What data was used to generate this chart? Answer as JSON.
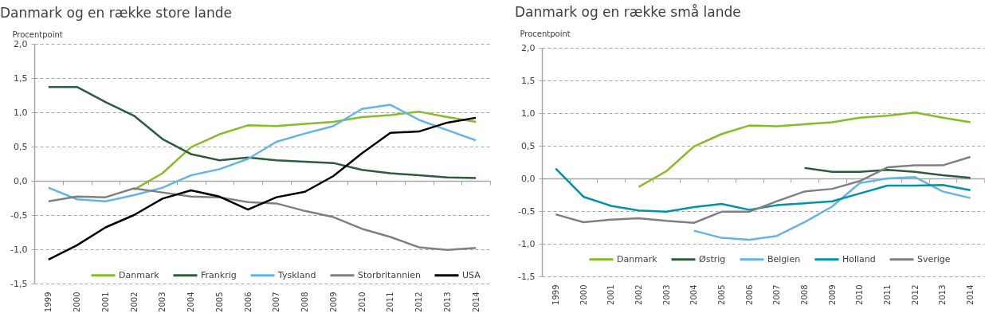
{
  "chart_data": [
    {
      "type": "line",
      "title": "Danmark og en række store lande",
      "ylabel": "Procentpoint",
      "categories": [
        "1999",
        "2000",
        "2001",
        "2002",
        "2003",
        "2004",
        "2005",
        "2006",
        "2007",
        "2008",
        "2009",
        "2010",
        "2011",
        "2012",
        "2013",
        "2014"
      ],
      "series": [
        {
          "name": "Danmark",
          "color": "#86bc25",
          "values": [
            null,
            null,
            null,
            -0.13,
            0.11,
            0.49,
            0.68,
            0.81,
            0.8,
            0.83,
            0.86,
            0.93,
            0.96,
            1.01,
            0.93,
            0.86
          ]
        },
        {
          "name": "Frankrig",
          "color": "#2d5b3b",
          "values": [
            1.37,
            1.37,
            1.15,
            0.95,
            0.61,
            0.39,
            0.3,
            0.34,
            0.3,
            0.28,
            0.26,
            0.16,
            0.11,
            0.08,
            0.05,
            0.04
          ]
        },
        {
          "name": "Tyskland",
          "color": "#62b5e5",
          "values": [
            -0.1,
            -0.27,
            -0.3,
            -0.21,
            -0.1,
            0.08,
            0.17,
            0.32,
            0.57,
            0.69,
            0.8,
            1.05,
            1.11,
            0.89,
            0.74,
            0.59
          ]
        },
        {
          "name": "Storbritannien",
          "color": "#808080",
          "values": [
            -0.3,
            -0.23,
            -0.24,
            -0.11,
            -0.17,
            -0.23,
            -0.24,
            -0.31,
            -0.33,
            -0.44,
            -0.53,
            -0.7,
            -0.82,
            -0.97,
            -1.01,
            -0.98
          ]
        },
        {
          "name": "USA",
          "color": "#000000",
          "values": [
            -1.15,
            -0.94,
            -0.68,
            -0.5,
            -0.26,
            -0.14,
            -0.23,
            -0.42,
            -0.24,
            -0.16,
            0.07,
            0.4,
            0.7,
            0.72,
            0.85,
            0.92
          ]
        }
      ],
      "ylim": [
        -1.5,
        2
      ],
      "yticks": [
        {
          "value": -1.5,
          "label": "-1,5"
        },
        {
          "value": -1,
          "label": "-1,0"
        },
        {
          "value": -0.5,
          "label": "-0,5"
        },
        {
          "value": 0,
          "label": "0,0"
        },
        {
          "value": 0.5,
          "label": "0,5"
        },
        {
          "value": 1,
          "label": "1,0"
        },
        {
          "value": 1.5,
          "label": "1,5"
        },
        {
          "value": 2,
          "label": "2,0"
        }
      ],
      "grid": "y",
      "legend": "bottom"
    },
    {
      "type": "line",
      "title": "Danmark og en række små lande",
      "ylabel": "Procentpoint",
      "categories": [
        "1999",
        "2000",
        "2001",
        "2002",
        "2003",
        "2004",
        "2005",
        "2006",
        "2007",
        "2008",
        "2009",
        "2010",
        "2011",
        "2012",
        "2013",
        "2014"
      ],
      "series": [
        {
          "name": "Danmark",
          "color": "#86bc25",
          "values": [
            null,
            null,
            null,
            -0.13,
            0.11,
            0.49,
            0.68,
            0.81,
            0.8,
            0.83,
            0.86,
            0.93,
            0.96,
            1.01,
            0.93,
            0.86
          ]
        },
        {
          "name": "Østrig",
          "color": "#2d5b3b",
          "values": [
            null,
            null,
            null,
            null,
            null,
            null,
            null,
            null,
            null,
            0.16,
            0.1,
            0.1,
            0.13,
            0.1,
            0.05,
            0.01
          ]
        },
        {
          "name": "Belgien",
          "color": "#62b5e5",
          "values": [
            null,
            null,
            null,
            null,
            null,
            -0.8,
            -0.91,
            -0.94,
            -0.88,
            -0.67,
            -0.43,
            -0.07,
            0.0,
            0.02,
            -0.2,
            -0.3
          ]
        },
        {
          "name": "Holland",
          "color": "#0093a7",
          "values": [
            0.15,
            -0.28,
            -0.42,
            -0.49,
            -0.51,
            -0.44,
            -0.39,
            -0.48,
            -0.41,
            -0.38,
            -0.35,
            -0.23,
            -0.11,
            -0.11,
            -0.1,
            -0.18
          ]
        },
        {
          "name": "Sverige",
          "color": "#808080",
          "values": [
            -0.55,
            -0.67,
            -0.63,
            -0.61,
            -0.65,
            -0.68,
            -0.51,
            -0.51,
            -0.35,
            -0.2,
            -0.16,
            -0.04,
            0.17,
            0.2,
            0.2,
            0.33
          ]
        }
      ],
      "ylim": [
        -1.5,
        2
      ],
      "yticks": [
        {
          "value": -1.5,
          "label": "-1,5"
        },
        {
          "value": -1,
          "label": "-1,0"
        },
        {
          "value": -0.5,
          "label": "-0,5"
        },
        {
          "value": 0,
          "label": "0,0"
        },
        {
          "value": 0.5,
          "label": "0,5"
        },
        {
          "value": 1,
          "label": "1,0"
        },
        {
          "value": 1.5,
          "label": "1,5"
        },
        {
          "value": 2,
          "label": "2,0"
        }
      ],
      "grid": "y",
      "legend": "bottom"
    }
  ]
}
